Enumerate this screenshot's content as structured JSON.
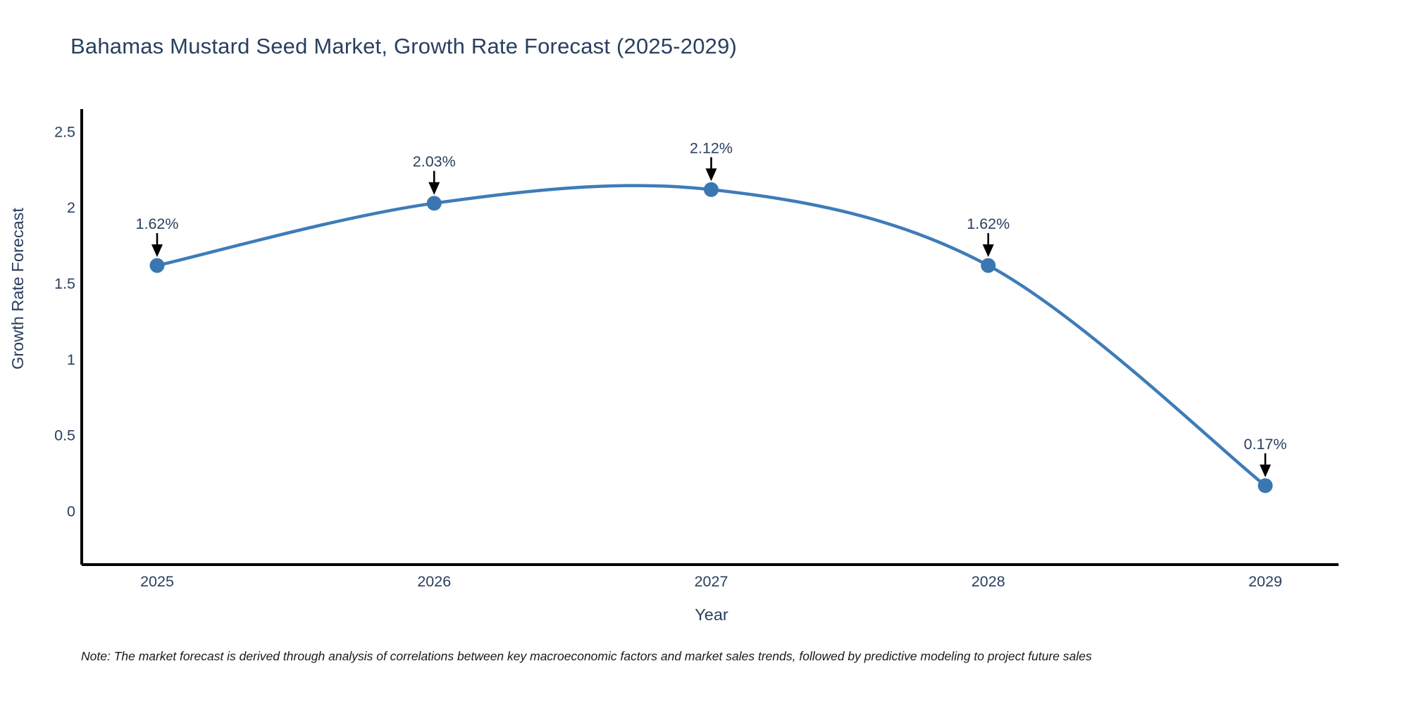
{
  "title": "Bahamas Mustard Seed Market, Growth Rate Forecast (2025-2029)",
  "note": "Note: The market forecast is derived through analysis of correlations between key macroeconomic factors and market sales trends, followed by predictive modeling to project future sales",
  "colors": {
    "title_text": "#2a3f5f",
    "tick_text": "#2a3f5f",
    "axis_line": "#000000",
    "series_line": "#3e7cb8",
    "marker_fill": "#3a76b2",
    "annotation_text": "#2a3f5f",
    "annotation_arrow": "#000000",
    "note_text": "#1a1a1a",
    "background": "#ffffff"
  },
  "chart_data": {
    "type": "line",
    "line_shape": "spline",
    "title": "Bahamas Mustard Seed Market, Growth Rate Forecast (2025-2029)",
    "xlabel": "Year",
    "ylabel": "Growth Rate Forecast",
    "x": [
      2025,
      2026,
      2027,
      2028,
      2029
    ],
    "series": [
      {
        "name": "Growth Rate Forecast",
        "values": [
          1.62,
          2.03,
          2.12,
          1.62,
          0.17
        ]
      }
    ],
    "annotations": [
      "1.62%",
      "2.03%",
      "2.12%",
      "1.62%",
      "0.17%"
    ],
    "xticks": [
      "2025",
      "2026",
      "2027",
      "2028",
      "2029"
    ],
    "yticks": [
      0,
      0.5,
      1,
      1.5,
      2,
      2.5
    ],
    "ylim": [
      -0.35,
      2.65
    ],
    "grid": false,
    "legend_position": "none",
    "markers": true
  }
}
